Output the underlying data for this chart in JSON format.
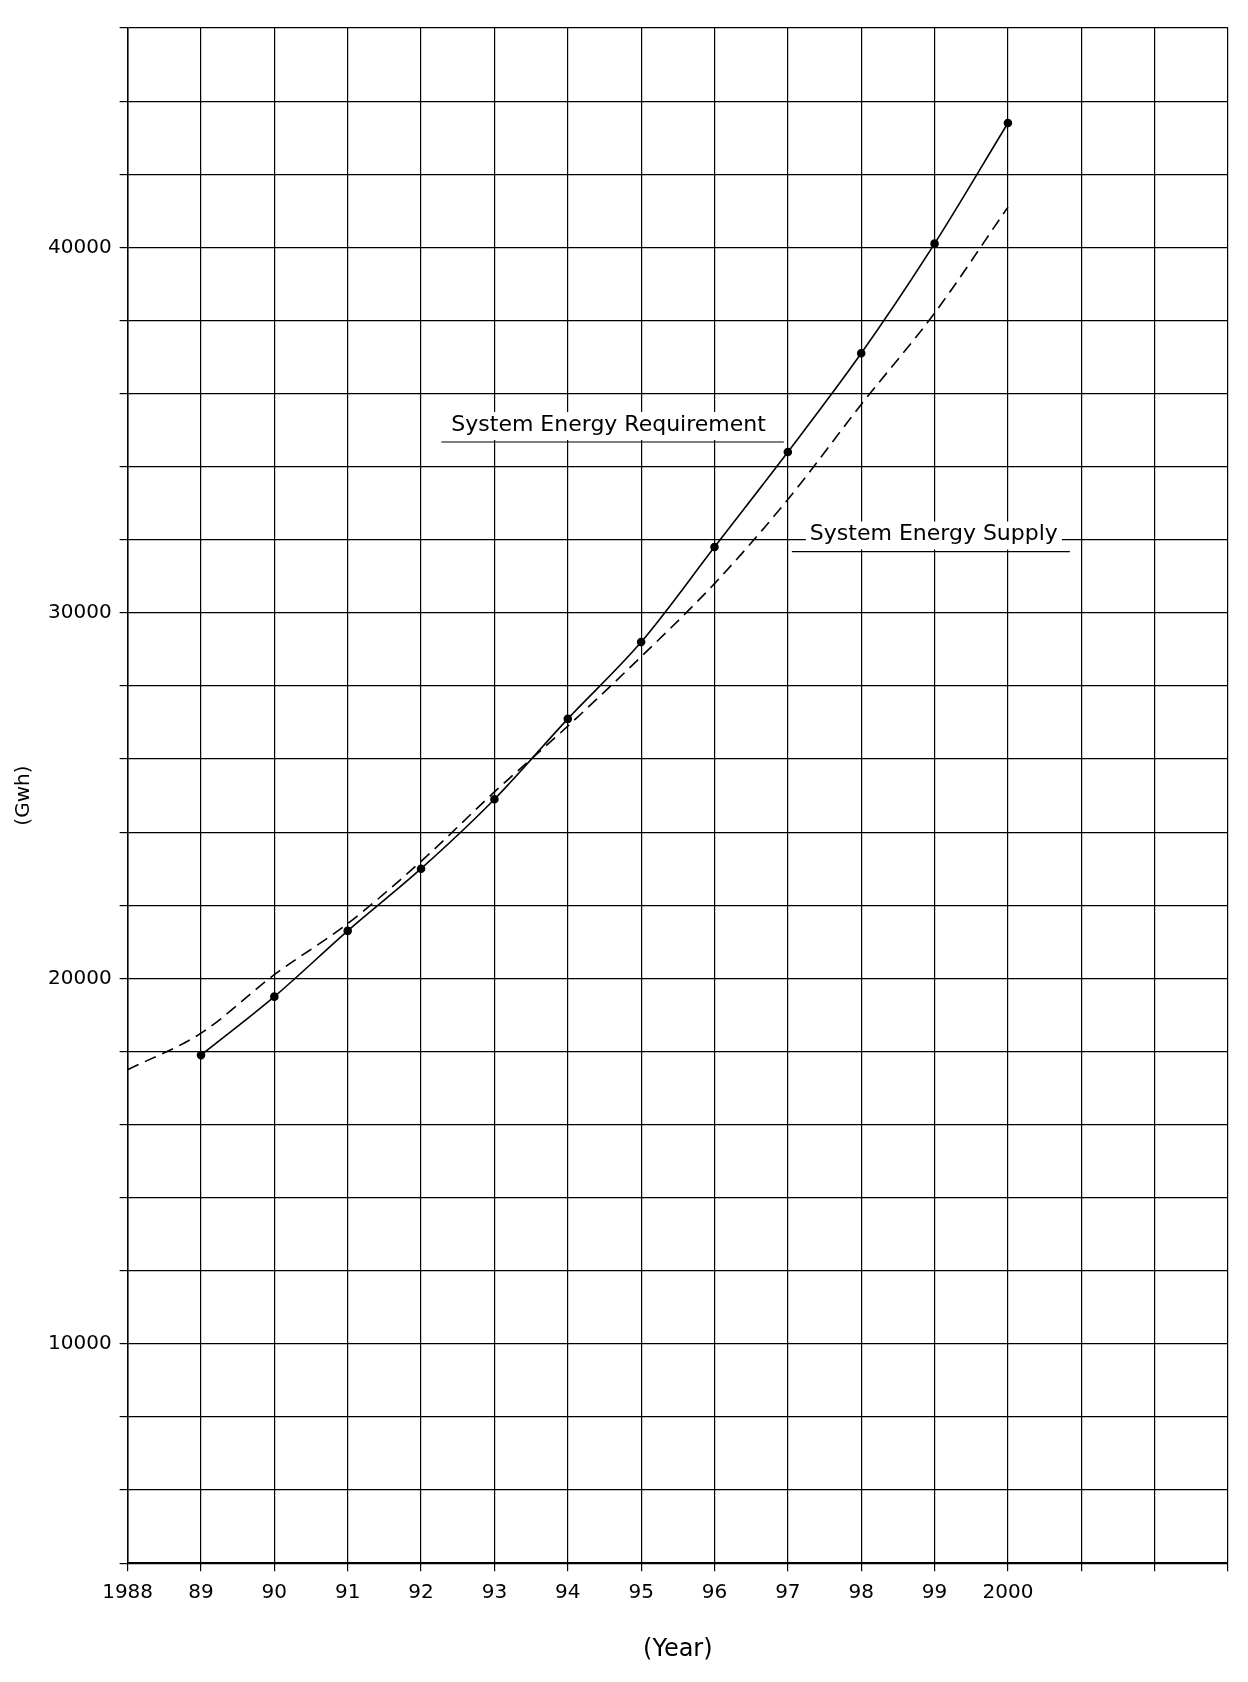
{
  "chart_data": {
    "type": "line",
    "xlabel": "(Year)",
    "ylabel": "(Gwh)",
    "x": [
      1988,
      1989,
      1990,
      1991,
      1992,
      1993,
      1994,
      1995,
      1996,
      1997,
      1998,
      1999,
      2000
    ],
    "series": [
      {
        "name": "System Energy Requirement",
        "color": "#000000",
        "marker": "circle",
        "line_style": "solid",
        "values": [
          null,
          17900,
          19500,
          21300,
          23000,
          24900,
          27100,
          29200,
          31800,
          34400,
          37100,
          40100,
          43400
        ]
      },
      {
        "name": "System Energy Supply",
        "color": "#000000",
        "marker": "none",
        "line_style": "dashed",
        "values": [
          17500,
          18500,
          20100,
          21500,
          23200,
          25100,
          26900,
          28800,
          30800,
          33100,
          35700,
          38200,
          41100
        ]
      }
    ],
    "xlim": [
      1988,
      2003
    ],
    "xticks": [
      1988,
      {
        "value": 1989,
        "label": "89"
      },
      {
        "value": 1990,
        "label": "90"
      },
      {
        "value": 1991,
        "label": "91"
      },
      {
        "value": 1992,
        "label": "92"
      },
      {
        "value": 1993,
        "label": "93"
      },
      {
        "value": 1994,
        "label": "94"
      },
      {
        "value": 1995,
        "label": "95"
      },
      {
        "value": 1996,
        "label": "96"
      },
      {
        "value": 1997,
        "label": "97"
      },
      {
        "value": 1998,
        "label": "98"
      },
      {
        "value": 1999,
        "label": "99"
      },
      2000,
      {
        "value": 2001,
        "label": null
      },
      {
        "value": 2002,
        "label": null
      },
      {
        "value": 2003,
        "label": null
      }
    ],
    "ylim": [
      4000,
      46000
    ],
    "yticks": [
      {
        "value": 4000,
        "label": null
      },
      {
        "value": 6000,
        "label": null
      },
      {
        "value": 8000,
        "label": null
      },
      10000,
      {
        "value": 12000,
        "label": null
      },
      {
        "value": 14000,
        "label": null
      },
      {
        "value": 16000,
        "label": null
      },
      {
        "value": 18000,
        "label": null
      },
      20000,
      {
        "value": 22000,
        "label": null
      },
      {
        "value": 24000,
        "label": null
      },
      {
        "value": 26000,
        "label": null
      },
      {
        "value": 28000,
        "label": null
      },
      30000,
      {
        "value": 32000,
        "label": null
      },
      {
        "value": 34000,
        "label": null
      },
      {
        "value": 36000,
        "label": null
      },
      {
        "value": 38000,
        "label": null
      },
      40000,
      {
        "value": 42000,
        "label": null
      },
      {
        "value": 44000,
        "label": null
      },
      {
        "value": 46000,
        "label": null
      }
    ],
    "grid": true,
    "legend": false
  }
}
